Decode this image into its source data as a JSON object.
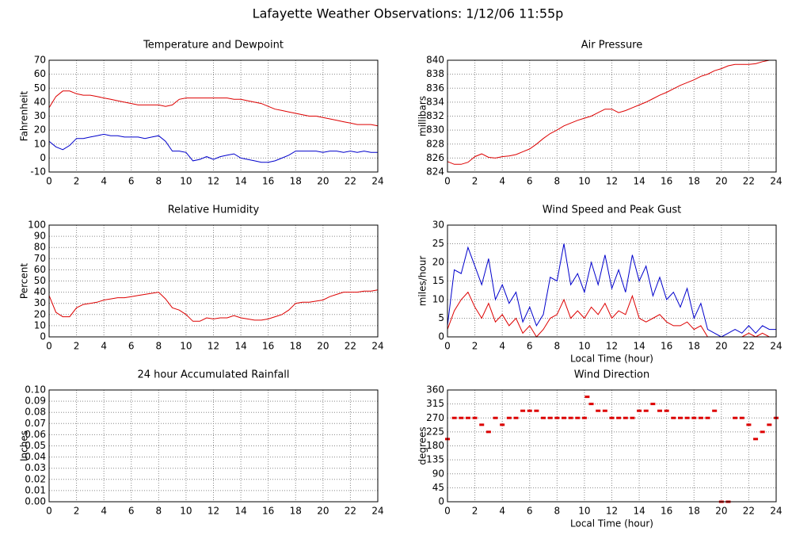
{
  "title": "Lafayette Weather Observations: 1/12/06 11:55p",
  "chart_data": [
    {
      "type": "line",
      "title": "Temperature and Dewpoint",
      "ylabel": "Fahrenheit",
      "x": [
        0,
        0.5,
        1,
        1.5,
        2,
        2.5,
        3,
        3.5,
        4,
        4.5,
        5,
        5.5,
        6,
        6.5,
        7,
        7.5,
        8,
        8.5,
        9,
        9.5,
        10,
        10.5,
        11,
        11.5,
        12,
        12.5,
        13,
        13.5,
        14,
        14.5,
        15,
        15.5,
        16,
        16.5,
        17,
        17.5,
        18,
        18.5,
        19,
        19.5,
        20,
        20.5,
        21,
        21.5,
        22,
        22.5,
        23,
        23.5,
        24
      ],
      "series": [
        {
          "color": "#dd0000",
          "values": [
            36,
            44,
            48,
            48,
            46,
            45,
            45,
            44,
            43,
            42,
            41,
            40,
            39,
            38,
            38,
            38,
            38,
            37,
            38,
            42,
            43,
            43,
            43,
            43,
            43,
            43,
            43,
            42,
            42,
            41,
            40,
            39,
            37,
            35,
            34,
            33,
            32,
            31,
            30,
            30,
            29,
            28,
            27,
            26,
            25,
            24,
            24,
            24,
            23
          ]
        },
        {
          "color": "#0000cc",
          "values": [
            12,
            8,
            6,
            9,
            14,
            14,
            15,
            16,
            17,
            16,
            16,
            15,
            15,
            15,
            14,
            15,
            16,
            12,
            5,
            5,
            4,
            -2,
            -1,
            1,
            -1,
            1,
            2,
            3,
            0,
            -1,
            -2,
            -3,
            -3,
            -2,
            0,
            2,
            5,
            5,
            5,
            5,
            4,
            5,
            5,
            4,
            5,
            4,
            5,
            4,
            4
          ]
        }
      ],
      "xlim": [
        0,
        24
      ],
      "xticks": [
        0,
        2,
        4,
        6,
        8,
        10,
        12,
        14,
        16,
        18,
        20,
        22,
        24
      ],
      "ylim": [
        -10,
        70
      ],
      "yticks": [
        -10,
        0,
        10,
        20,
        30,
        40,
        50,
        60,
        70
      ],
      "grid": true
    },
    {
      "type": "line",
      "title": "Air Pressure",
      "ylabel": "millibars",
      "x": [
        0,
        0.5,
        1,
        1.5,
        2,
        2.5,
        3,
        3.5,
        4,
        4.5,
        5,
        5.5,
        6,
        6.5,
        7,
        7.5,
        8,
        8.5,
        9,
        9.5,
        10,
        10.5,
        11,
        11.5,
        12,
        12.5,
        13,
        13.5,
        14,
        14.5,
        15,
        15.5,
        16,
        16.5,
        17,
        17.5,
        18,
        18.5,
        19,
        19.5,
        20,
        20.5,
        21,
        21.5,
        22,
        22.5,
        23,
        23.5,
        24
      ],
      "series": [
        {
          "color": "#dd0000",
          "values": [
            825.5,
            825.1,
            825.1,
            825.4,
            826.2,
            826.6,
            826.1,
            826.0,
            826.2,
            826.3,
            826.5,
            826.9,
            827.3,
            828.0,
            828.8,
            829.5,
            830.0,
            830.6,
            831.0,
            831.4,
            831.7,
            832.0,
            832.5,
            833.0,
            833.0,
            832.5,
            832.8,
            833.2,
            833.6,
            834.0,
            834.5,
            835.0,
            835.4,
            835.9,
            836.4,
            836.8,
            837.2,
            837.7,
            838.0,
            838.5,
            838.8,
            839.2,
            839.4,
            839.4,
            839.4,
            839.5,
            839.8,
            840.0,
            840.0
          ]
        }
      ],
      "xlim": [
        0,
        24
      ],
      "xticks": [
        0,
        2,
        4,
        6,
        8,
        10,
        12,
        14,
        16,
        18,
        20,
        22,
        24
      ],
      "ylim": [
        824,
        840
      ],
      "yticks": [
        824,
        826,
        828,
        830,
        832,
        834,
        836,
        838,
        840
      ],
      "grid": true
    },
    {
      "type": "line",
      "title": "Relative Humidity",
      "ylabel": "Percent",
      "x": [
        0,
        0.5,
        1,
        1.5,
        2,
        2.5,
        3,
        3.5,
        4,
        4.5,
        5,
        5.5,
        6,
        6.5,
        7,
        7.5,
        8,
        8.5,
        9,
        9.5,
        10,
        10.5,
        11,
        11.5,
        12,
        12.5,
        13,
        13.5,
        14,
        14.5,
        15,
        15.5,
        16,
        16.5,
        17,
        17.5,
        18,
        18.5,
        19,
        19.5,
        20,
        20.5,
        21,
        21.5,
        22,
        22.5,
        23,
        23.5,
        24
      ],
      "series": [
        {
          "color": "#dd0000",
          "values": [
            37,
            22,
            18,
            18,
            26,
            29,
            30,
            31,
            33,
            34,
            35,
            35,
            36,
            37,
            38,
            39,
            40,
            34,
            26,
            24,
            20,
            14,
            14,
            17,
            16,
            17,
            17,
            19,
            17,
            16,
            15,
            15,
            16,
            18,
            20,
            24,
            30,
            31,
            31,
            32,
            33,
            36,
            38,
            40,
            40,
            40,
            41,
            41,
            42
          ]
        }
      ],
      "xlim": [
        0,
        24
      ],
      "xticks": [
        0,
        2,
        4,
        6,
        8,
        10,
        12,
        14,
        16,
        18,
        20,
        22,
        24
      ],
      "ylim": [
        0,
        100
      ],
      "yticks": [
        0,
        10,
        20,
        30,
        40,
        50,
        60,
        70,
        80,
        90,
        100
      ],
      "grid": true
    },
    {
      "type": "line",
      "title": "Wind Speed and Peak Gust",
      "ylabel": "miles/hour",
      "xlabel": "Local Time (hour)",
      "x": [
        0,
        0.5,
        1,
        1.5,
        2,
        2.5,
        3,
        3.5,
        4,
        4.5,
        5,
        5.5,
        6,
        6.5,
        7,
        7.5,
        8,
        8.5,
        9,
        9.5,
        10,
        10.5,
        11,
        11.5,
        12,
        12.5,
        13,
        13.5,
        14,
        14.5,
        15,
        15.5,
        16,
        16.5,
        17,
        17.5,
        18,
        18.5,
        19,
        19.5,
        20,
        20.5,
        21,
        21.5,
        22,
        22.5,
        23,
        23.5,
        24
      ],
      "series": [
        {
          "color": "#0000cc",
          "values": [
            3,
            18,
            17,
            24,
            19,
            14,
            21,
            10,
            14,
            9,
            12,
            4,
            8,
            3,
            6,
            16,
            15,
            25,
            14,
            17,
            12,
            20,
            14,
            22,
            13,
            18,
            12,
            22,
            15,
            19,
            11,
            16,
            10,
            12,
            8,
            13,
            5,
            9,
            2,
            1,
            0,
            1,
            2,
            1,
            3,
            1,
            3,
            2,
            2
          ]
        },
        {
          "color": "#dd0000",
          "values": [
            2,
            7,
            10,
            12,
            8,
            5,
            9,
            4,
            6,
            3,
            5,
            1,
            3,
            0,
            2,
            5,
            6,
            10,
            5,
            7,
            5,
            8,
            6,
            9,
            5,
            7,
            6,
            11,
            5,
            4,
            5,
            6,
            4,
            3,
            3,
            4,
            2,
            3,
            0,
            0,
            0,
            0,
            0,
            0,
            1,
            0,
            1,
            0,
            0
          ]
        }
      ],
      "xlim": [
        0,
        24
      ],
      "xticks": [
        0,
        2,
        4,
        6,
        8,
        10,
        12,
        14,
        16,
        18,
        20,
        22,
        24
      ],
      "ylim": [
        0,
        30
      ],
      "yticks": [
        0,
        5,
        10,
        15,
        20,
        25,
        30
      ],
      "grid": true
    },
    {
      "type": "line",
      "title": "24 hour Accumulated Rainfall",
      "ylabel": "Inches",
      "x": [
        0,
        24
      ],
      "series": [
        {
          "color": "#dd0000",
          "values": [
            0,
            0
          ]
        }
      ],
      "xlim": [
        0,
        24
      ],
      "xticks": [
        0,
        2,
        4,
        6,
        8,
        10,
        12,
        14,
        16,
        18,
        20,
        22,
        24
      ],
      "ylim": [
        0,
        0.1
      ],
      "yticks": [
        {
          "value": 0,
          "label": "0.00"
        },
        {
          "value": 0.01,
          "label": "0.01"
        },
        {
          "value": 0.02,
          "label": "0.02"
        },
        {
          "value": 0.03,
          "label": "0.03"
        },
        {
          "value": 0.04,
          "label": "0.04"
        },
        {
          "value": 0.05,
          "label": "0.05"
        },
        {
          "value": 0.06,
          "label": "0.06"
        },
        {
          "value": 0.07,
          "label": "0.07"
        },
        {
          "value": 0.08,
          "label": "0.08"
        },
        {
          "value": 0.09,
          "label": "0.09"
        },
        {
          "value": 0.1,
          "label": "0.10"
        }
      ],
      "grid": true
    },
    {
      "type": "scatter",
      "title": "Wind Direction",
      "ylabel": "degrees",
      "xlabel": "Local Time (hour)",
      "x": [
        0,
        0.5,
        1,
        1.5,
        2,
        2.5,
        3,
        3.5,
        4,
        4.5,
        5,
        5.5,
        6,
        6.5,
        7,
        7.5,
        8,
        8.5,
        9,
        9.5,
        10,
        10.2,
        10.5,
        11,
        11.5,
        12,
        12.5,
        13,
        13.5,
        14,
        14.5,
        15,
        15.5,
        16,
        16.5,
        17,
        17.5,
        18,
        18.5,
        19,
        19.5,
        20,
        20.5,
        21,
        21.5,
        22,
        22.5,
        23,
        23.5,
        24
      ],
      "series": [
        {
          "color": "#dd0000",
          "values": [
            202,
            270,
            270,
            270,
            270,
            248,
            225,
            270,
            248,
            270,
            270,
            293,
            293,
            293,
            270,
            270,
            270,
            270,
            270,
            270,
            270,
            338,
            315,
            293,
            293,
            270,
            270,
            270,
            270,
            293,
            293,
            315,
            293,
            293,
            270,
            270,
            270,
            270,
            270,
            270,
            293,
            0,
            0,
            270,
            270,
            248,
            202,
            225,
            248,
            270
          ]
        }
      ],
      "xlim": [
        0,
        24
      ],
      "xticks": [
        0,
        2,
        4,
        6,
        8,
        10,
        12,
        14,
        16,
        18,
        20,
        22,
        24
      ],
      "ylim": [
        0,
        360
      ],
      "yticks": [
        0,
        45,
        90,
        135,
        180,
        225,
        270,
        315,
        360
      ],
      "grid": true
    }
  ]
}
